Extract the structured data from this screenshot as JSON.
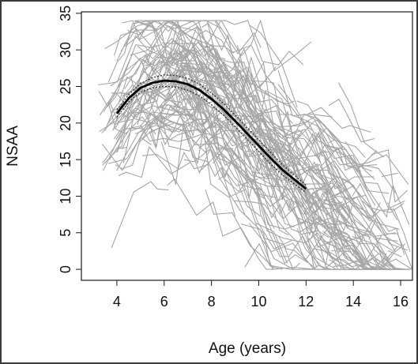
{
  "chart_data": {
    "type": "line",
    "xlabel": "Age (years)",
    "ylabel": "NSAA",
    "xlim": [
      2.5,
      16.5
    ],
    "ylim": [
      -1.5,
      35.2
    ],
    "x_ticks": [
      {
        "value": 4,
        "label": "4"
      },
      {
        "value": 6,
        "label": "6"
      },
      {
        "value": 8,
        "label": "8"
      },
      {
        "value": 10,
        "label": "10"
      },
      {
        "value": 12,
        "label": "12"
      },
      {
        "value": 14,
        "label": "14"
      },
      {
        "value": 16,
        "label": "16"
      }
    ],
    "y_ticks": [
      {
        "value": 0,
        "label": "0"
      },
      {
        "value": 5,
        "label": "5"
      },
      {
        "value": 10,
        "label": "10"
      },
      {
        "value": 15,
        "label": "15"
      },
      {
        "value": 20,
        "label": "20"
      },
      {
        "value": 25,
        "label": "25"
      },
      {
        "value": 30,
        "label": "30"
      },
      {
        "value": 35,
        "label": "35"
      }
    ],
    "grid": false,
    "colors": {
      "individual": "#a6a6a6",
      "fit": "#000000",
      "ci": "#333333",
      "frame": "#1a1a1a",
      "border": "#3a3a3a"
    },
    "series": [
      {
        "kind": "fitted-mean",
        "x": [
          4,
          4.5,
          5,
          5.5,
          6,
          6.5,
          7,
          7.5,
          8,
          8.5,
          9,
          9.5,
          10,
          10.5,
          11,
          11.5,
          12
        ],
        "values": [
          21.3,
          23.4,
          24.8,
          25.5,
          25.8,
          25.7,
          25.3,
          24.5,
          23.3,
          21.9,
          20.3,
          18.6,
          16.9,
          15.2,
          13.6,
          12.3,
          11.0
        ]
      },
      {
        "kind": "ci-upper",
        "x": [
          4,
          4.5,
          5,
          5.5,
          6,
          6.5,
          7,
          7.5,
          8,
          8.5,
          9,
          9.5,
          10,
          10.5,
          11,
          11.5,
          12
        ],
        "values": [
          21.8,
          23.9,
          25.4,
          26.2,
          26.6,
          26.5,
          26.1,
          25.3,
          24.1,
          22.7,
          21.1,
          19.4,
          17.7,
          16.0,
          14.3,
          12.9,
          11.5
        ]
      },
      {
        "kind": "ci-lower",
        "x": [
          4,
          4.5,
          5,
          5.5,
          6,
          6.5,
          7,
          7.5,
          8,
          8.5,
          9,
          9.5,
          10,
          10.5,
          11,
          11.5,
          12
        ],
        "values": [
          20.8,
          22.9,
          24.2,
          24.8,
          25.0,
          24.9,
          24.5,
          23.7,
          22.5,
          21.1,
          19.5,
          17.8,
          16.1,
          14.4,
          12.9,
          11.7,
          10.5
        ]
      }
    ],
    "individual_trajectories": {
      "count": 300,
      "x_range": [
        3.2,
        16.5
      ],
      "y_range": [
        0,
        34
      ],
      "description_note": ""
    }
  }
}
